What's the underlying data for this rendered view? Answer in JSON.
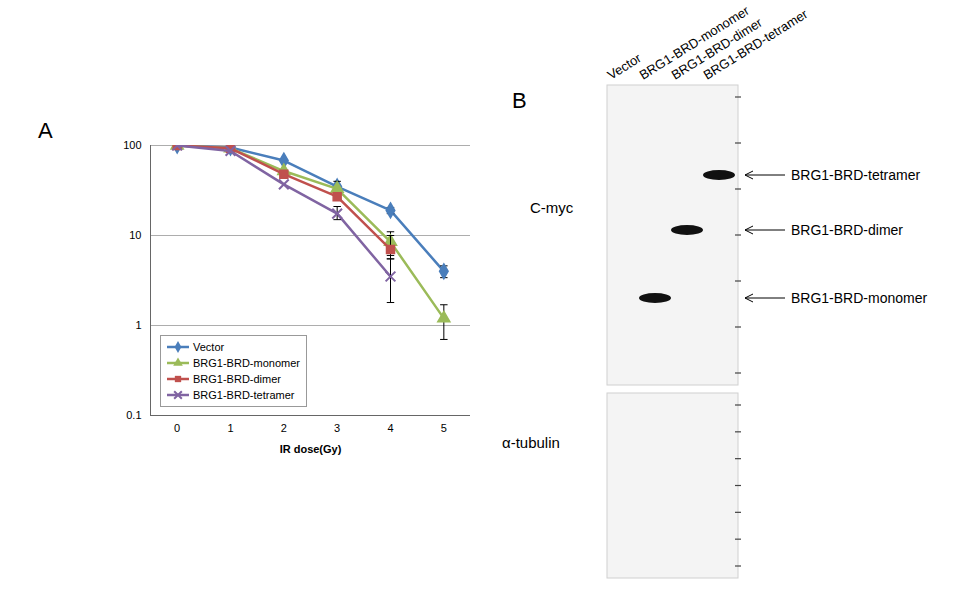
{
  "chart_data": {
    "type": "line",
    "title": "A",
    "x_label": "IR dose(Gy)",
    "x": [
      0,
      1,
      2,
      3,
      4,
      5
    ],
    "xlim": [
      -0.5,
      5.5
    ],
    "xticks": [
      0,
      1,
      2,
      3,
      4,
      5
    ],
    "log": "y",
    "ylim": [
      0.1,
      100
    ],
    "yticks": [
      0.1,
      1,
      10,
      100
    ],
    "grid": true,
    "legend": "bottom-left",
    "series": [
      {
        "name": "Vector",
        "color": "#4a7ebb",
        "marker": "diamond",
        "values": [
          100,
          95,
          68,
          35,
          19,
          4
        ],
        "error_low": [
          null,
          null,
          null,
          null,
          17.5,
          3.4
        ],
        "error_high": [
          null,
          null,
          null,
          null,
          20.5,
          4.6
        ]
      },
      {
        "name": "BRG1-BRD-monomer",
        "color": "#9bbb59",
        "marker": "triangle",
        "values": [
          100,
          93,
          52,
          33,
          8.5,
          1.2
        ],
        "error_low": [
          null,
          null,
          null,
          28,
          6,
          0.7
        ],
        "error_high": [
          null,
          null,
          null,
          40,
          11,
          1.7
        ]
      },
      {
        "name": "BRG1-BRD-dimer",
        "color": "#c0504d",
        "marker": "square",
        "values": [
          100,
          93,
          48,
          27,
          7,
          null
        ],
        "error_low": [
          null,
          null,
          null,
          null,
          5.5,
          null
        ],
        "error_high": [
          null,
          null,
          null,
          null,
          10,
          null
        ]
      },
      {
        "name": "BRG1-BRD-tetramer",
        "color": "#8064a2",
        "marker": "x",
        "values": [
          100,
          87,
          37,
          17.5,
          3.5,
          null
        ],
        "error_low": [
          null,
          null,
          null,
          15,
          1.8,
          null
        ],
        "error_high": [
          null,
          null,
          null,
          21,
          5.5,
          null
        ]
      }
    ]
  },
  "blot": {
    "title": "B",
    "lanes": [
      "Vector",
      "BRG1-BRD-monomer",
      "BRG1-BRD-dimer",
      "BRG1-BRD-tetramer"
    ],
    "panels": [
      {
        "label": "C-myc",
        "bands": [
          {
            "lane": 3,
            "label": "BRG1-BRD-tetramer"
          },
          {
            "lane": 2,
            "label": "BRG1-BRD-dimer"
          },
          {
            "lane": 1,
            "label": "BRG1-BRD-monomer"
          }
        ]
      },
      {
        "label": "α-tubulin",
        "bands": []
      }
    ]
  }
}
